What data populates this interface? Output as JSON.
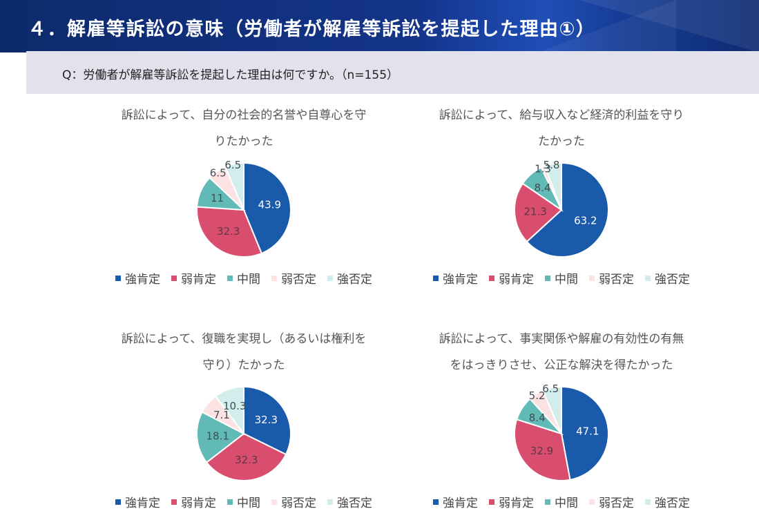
{
  "header": {
    "title": "４．解雇等訴訟の意味（労働者が解雇等訴訟を提起した理由①）",
    "question": "Q：労働者が解雇等訴訟を提起した理由は何ですか。（n=155）"
  },
  "legend": {
    "items": [
      {
        "label": "強肯定",
        "color": "#1a5aab"
      },
      {
        "label": "弱肯定",
        "color": "#d94e6e"
      },
      {
        "label": "中間",
        "color": "#62bab6"
      },
      {
        "label": "弱否定",
        "color": "#fde2e4"
      },
      {
        "label": "強否定",
        "color": "#d3ecec"
      }
    ]
  },
  "chart_data": [
    {
      "type": "pie",
      "title_lines": [
        "訴訟によって、自分の社会的名誉や自尊心を守",
        "りたかった"
      ],
      "categories": [
        "強肯定",
        "弱肯定",
        "中間",
        "弱否定",
        "強否定"
      ],
      "values": [
        43.9,
        32.3,
        11,
        6.5,
        6.5
      ],
      "labels": [
        "43.9",
        "32.3",
        "11",
        "6.5",
        "6.5"
      ],
      "colors": [
        "#1a5aab",
        "#d94e6e",
        "#62bab6",
        "#fde2e4",
        "#d3ecec"
      ],
      "legend": "bottom"
    },
    {
      "type": "pie",
      "title_lines": [
        "訴訟によって、給与収入など経済的利益を守り",
        "たかった"
      ],
      "categories": [
        "強肯定",
        "弱肯定",
        "中間",
        "弱否定",
        "強否定"
      ],
      "values": [
        63.2,
        21.3,
        8.4,
        1.3,
        5.8
      ],
      "labels": [
        "63.2",
        "21.3",
        "8.4",
        "1.3",
        "5.8"
      ],
      "colors": [
        "#1a5aab",
        "#d94e6e",
        "#62bab6",
        "#fde2e4",
        "#d3ecec"
      ],
      "legend": "bottom"
    },
    {
      "type": "pie",
      "title_lines": [
        "訴訟によって、復職を実現し（あるいは権利を",
        "守り）たかった"
      ],
      "categories": [
        "強肯定",
        "弱肯定",
        "中間",
        "弱否定",
        "強否定"
      ],
      "values": [
        32.3,
        32.3,
        18.1,
        7.1,
        10.3
      ],
      "labels": [
        "32.3",
        "32.3",
        "18.1",
        "7.1",
        "10.3"
      ],
      "colors": [
        "#1a5aab",
        "#d94e6e",
        "#62bab6",
        "#fde2e4",
        "#d3ecec"
      ],
      "legend": "bottom"
    },
    {
      "type": "pie",
      "title_lines": [
        "訴訟によって、事実関係や解雇の有効性の有無",
        "をはっきりさせ、公正な解決を得たかった"
      ],
      "categories": [
        "強肯定",
        "弱肯定",
        "中間",
        "弱否定",
        "強否定"
      ],
      "values": [
        47.1,
        32.9,
        8.4,
        5.2,
        6.5
      ],
      "labels": [
        "47.1",
        "32.9",
        "8.4",
        "5.2",
        "6.5"
      ],
      "colors": [
        "#1a5aab",
        "#d94e6e",
        "#62bab6",
        "#fde2e4",
        "#d3ecec"
      ],
      "legend": "bottom"
    }
  ]
}
